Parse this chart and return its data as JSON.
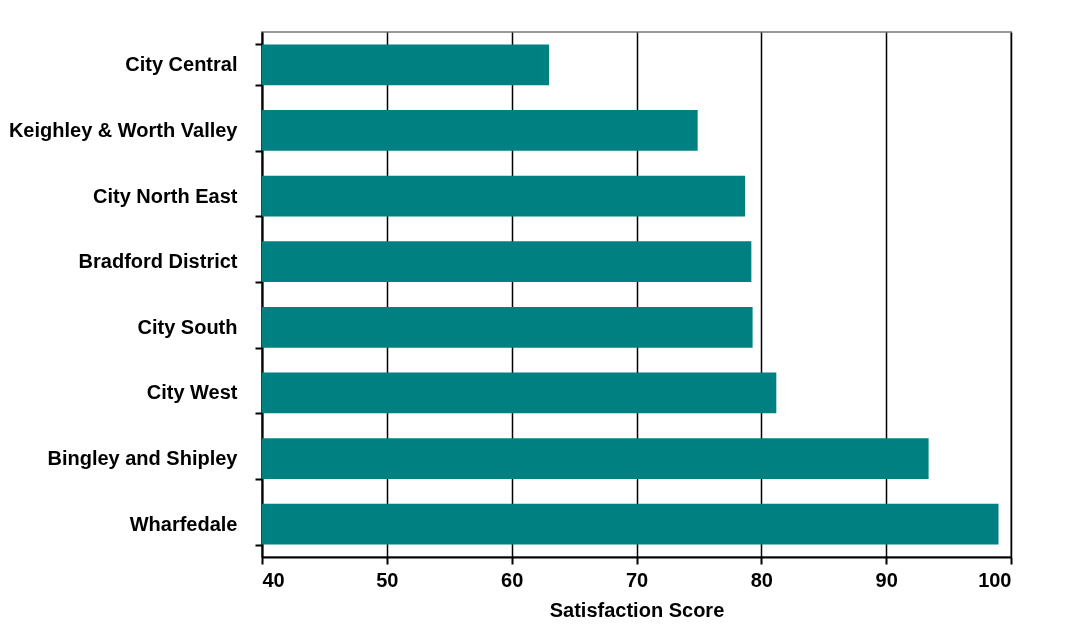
{
  "chart_data": {
    "type": "bar",
    "orientation": "horizontal",
    "xlabel": "Satisfaction Score",
    "categories": [
      "City Central",
      "Keighley & Worth Valley",
      "City North East",
      "Bradford District",
      "City South",
      "City West",
      "Bingley and Shipley",
      "Wharfedale"
    ],
    "values": [
      63.0,
      74.9,
      78.7,
      79.2,
      79.3,
      81.2,
      93.4,
      99.0
    ],
    "color": "#008080",
    "xlim": [
      40,
      100
    ],
    "xticks": [
      40,
      50,
      60,
      70,
      80,
      90,
      100
    ],
    "grid": "x"
  }
}
